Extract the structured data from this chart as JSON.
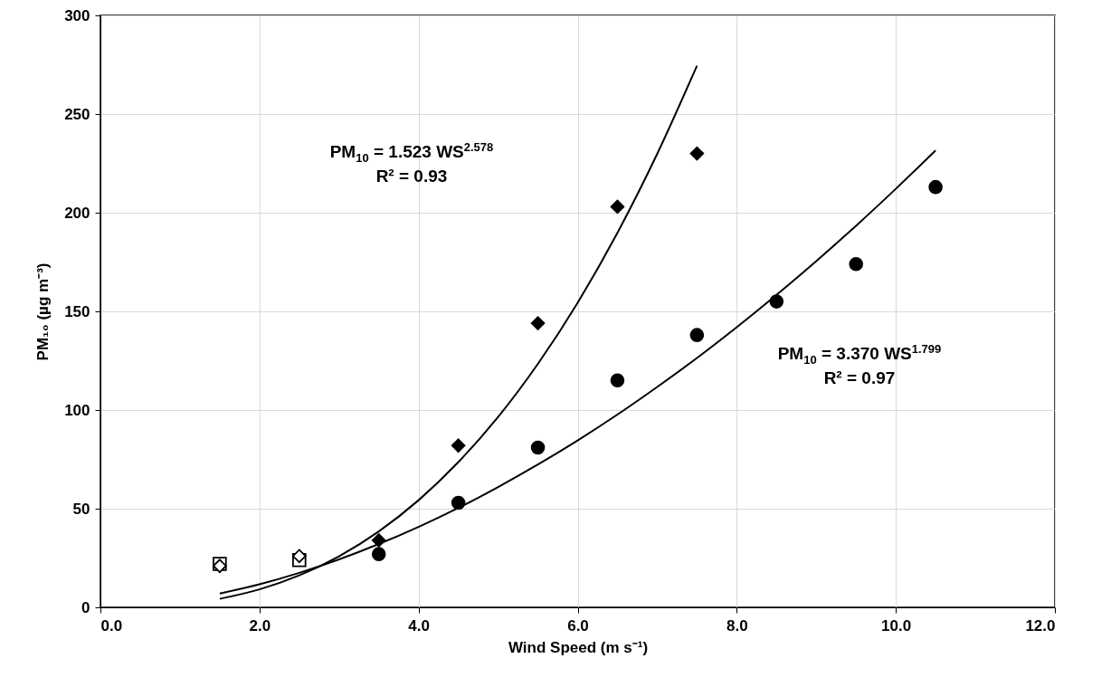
{
  "chart_data": {
    "type": "scatter",
    "xlabel": "Wind Speed (m s⁻¹)",
    "ylabel": "PM₁₀  (µg m⁻³)",
    "xlim": [
      0,
      12
    ],
    "xticks": [
      {
        "value": 0,
        "label": "0.0"
      },
      {
        "value": 2,
        "label": "2.0"
      },
      {
        "value": 4,
        "label": "4.0"
      },
      {
        "value": 6,
        "label": "6.0"
      },
      {
        "value": 8,
        "label": "8.0"
      },
      {
        "value": 10,
        "label": "10.0"
      },
      {
        "value": 12,
        "label": "12.0"
      }
    ],
    "ylim": [
      0,
      300
    ],
    "yticks": [
      0,
      50,
      100,
      150,
      200,
      250,
      300
    ],
    "grid": true,
    "annotations": [
      "PM$_{10}$ = 1.523 WS$^{2.578}$\nR² = 0.93",
      "PM$_{10}$ = 3.370 WS$^{1.799}$\nR² = 0.97"
    ],
    "series": [
      {
        "type": "line",
        "color": "#000000",
        "marker": "none",
        "x": [
          1.5,
          2,
          2.5,
          3,
          3.5,
          4,
          4.5,
          5,
          5.5,
          6,
          6.5,
          7,
          7.5
        ],
        "values": [
          4.3,
          9.1,
          16.2,
          25.9,
          38.5,
          54.3,
          73.6,
          96.5,
          123.4,
          154.4,
          189.8,
          229.8,
          274.5
        ]
      },
      {
        "type": "line",
        "color": "#000000",
        "marker": "none",
        "x": [
          1.5,
          2,
          2.5,
          3,
          3.5,
          4,
          4.5,
          5,
          5.5,
          6,
          6.5,
          7,
          7.5,
          8,
          8.5,
          9,
          9.5,
          10,
          10.5
        ],
        "values": [
          7.0,
          11.7,
          17.5,
          24.3,
          32.1,
          40.8,
          50.4,
          61.0,
          72.4,
          84.6,
          97.7,
          111.7,
          126.4,
          142.0,
          158.4,
          175.5,
          193.4,
          212.1,
          231.5
        ]
      },
      {
        "type": "scatter",
        "color": "#ffffff",
        "marker": "square",
        "x": [
          1.5,
          2.5
        ],
        "values": [
          22,
          24
        ]
      },
      {
        "type": "scatter",
        "color": "#ffffff",
        "marker": "diamond",
        "x": [
          1.5,
          2.5
        ],
        "values": [
          21,
          26
        ]
      },
      {
        "type": "scatter",
        "color": "#000000",
        "marker": "diamond",
        "x": [
          3.5,
          4.5,
          5.5,
          6.5,
          7.5
        ],
        "values": [
          34,
          82,
          144,
          203,
          230
        ]
      },
      {
        "type": "scatter",
        "color": "#000000",
        "marker": "circle",
        "x": [
          3.5,
          4.5,
          5.5,
          6.5,
          7.5,
          8.5,
          9.5,
          10.5
        ],
        "values": [
          27,
          53,
          81,
          115,
          138,
          155,
          174,
          213
        ]
      }
    ]
  }
}
